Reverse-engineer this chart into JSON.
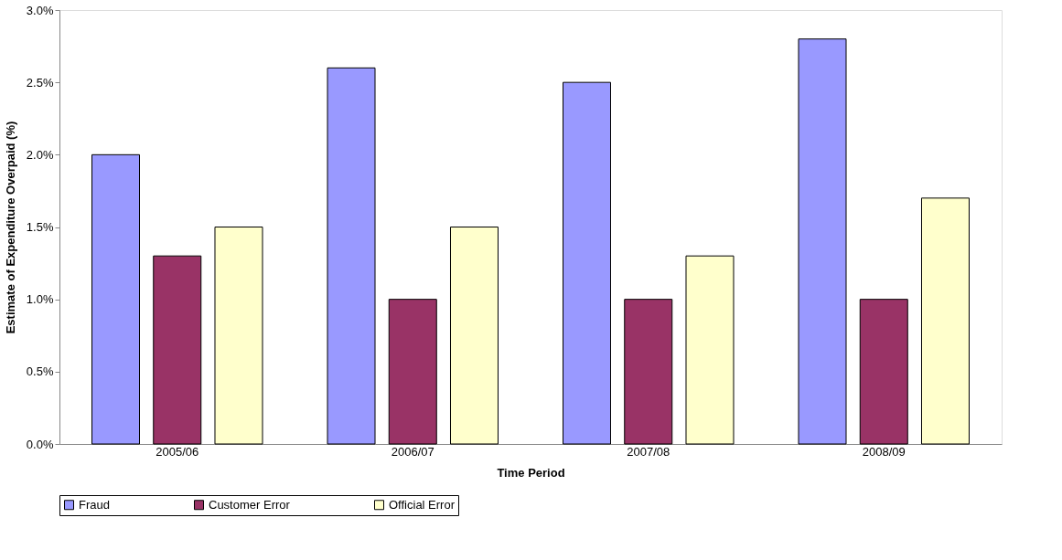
{
  "chart_data": {
    "type": "bar",
    "xlabel": "Time Period",
    "ylabel": "Estimate of Expenditure Overpaid (%)",
    "categories": [
      "2005/06",
      "2006/07",
      "2007/08",
      "2008/09"
    ],
    "series": [
      {
        "name": "Fraud",
        "color": "#9999ff",
        "values": [
          2.0,
          2.6,
          2.5,
          2.8
        ]
      },
      {
        "name": "Customer Error",
        "color": "#993366",
        "values": [
          1.3,
          1.0,
          1.0,
          1.0
        ]
      },
      {
        "name": "Official Error",
        "color": "#ffffcc",
        "values": [
          1.5,
          1.5,
          1.3,
          1.7
        ]
      }
    ],
    "ylim": [
      0,
      3.0
    ],
    "yticks": [
      {
        "value": 0,
        "label": "0.0%"
      },
      {
        "value": 0.5,
        "label": "0.5%"
      },
      {
        "value": 1.0,
        "label": "1.0%"
      },
      {
        "value": 1.5,
        "label": "1.5%"
      },
      {
        "value": 2.0,
        "label": "2.0%"
      },
      {
        "value": 2.5,
        "label": "2.5%"
      },
      {
        "value": 3.0,
        "label": "3.0%"
      }
    ],
    "grid": false,
    "legend": "bottom"
  }
}
